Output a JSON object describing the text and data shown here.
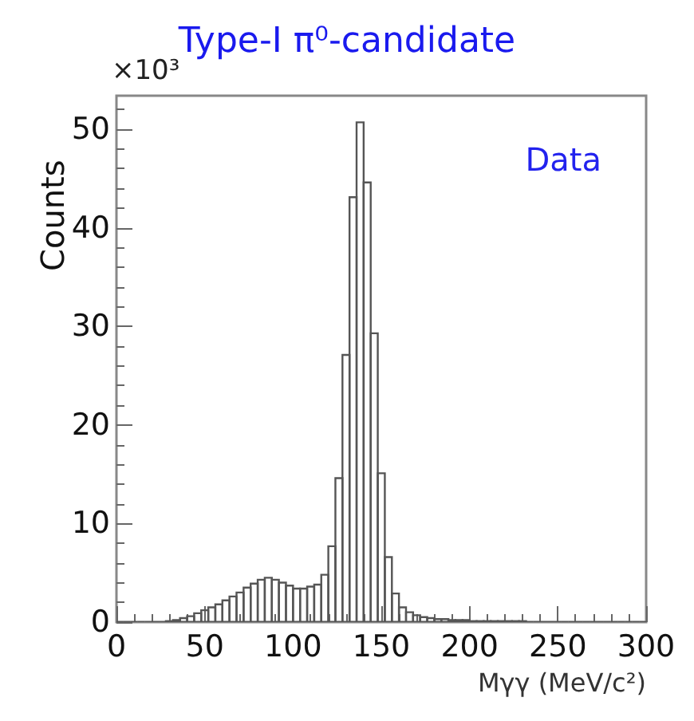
{
  "chart_data": {
    "type": "histogram",
    "title": "Type-I π⁰-candidate",
    "xlabel": "Mγγ (MeV/c²)",
    "ylabel": "Counts",
    "annotations": [
      "×10³",
      "Data"
    ],
    "bins": [
      0,
      4,
      8,
      12,
      16,
      20,
      24,
      28,
      32,
      36,
      40,
      44,
      48,
      52,
      56,
      60,
      64,
      68,
      72,
      76,
      80,
      84,
      88,
      92,
      96,
      100,
      104,
      108,
      112,
      116,
      120,
      124,
      128,
      132,
      136,
      140,
      144,
      148,
      152,
      156,
      160,
      164,
      168,
      172,
      176,
      180,
      184,
      188,
      192,
      196,
      200,
      204,
      208,
      212,
      216,
      220,
      224,
      228,
      232,
      236,
      240,
      244,
      248,
      252,
      256,
      260,
      264,
      268,
      272,
      276,
      280,
      284,
      288,
      292,
      296,
      300
    ],
    "values": [
      0,
      0,
      0,
      0,
      0,
      0,
      0,
      0.1,
      0.2,
      0.4,
      0.6,
      0.9,
      1.2,
      1.5,
      1.8,
      2.2,
      2.6,
      3.0,
      3.5,
      3.9,
      4.3,
      4.5,
      4.3,
      4.0,
      3.7,
      3.4,
      3.4,
      3.6,
      3.8,
      4.8,
      7.7,
      14.6,
      27.1,
      43.1,
      50.7,
      44.6,
      29.3,
      15.1,
      6.6,
      2.9,
      1.5,
      1.0,
      0.7,
      0.5,
      0.4,
      0.3,
      0.3,
      0.2,
      0.2,
      0.2,
      0.1,
      0.1,
      0.1,
      0.1,
      0.1,
      0.1,
      0.1,
      0.1,
      0,
      0,
      0,
      0,
      0,
      0,
      0,
      0,
      0,
      0,
      0,
      0,
      0,
      0,
      0,
      0,
      0
    ],
    "color": "#555555",
    "xlim": [
      0,
      300
    ],
    "xticks": [
      0,
      50,
      100,
      150,
      200,
      250,
      300
    ],
    "ylim": [
      0,
      53.4
    ],
    "yticks": [
      0,
      10,
      20,
      30,
      40,
      50
    ]
  }
}
